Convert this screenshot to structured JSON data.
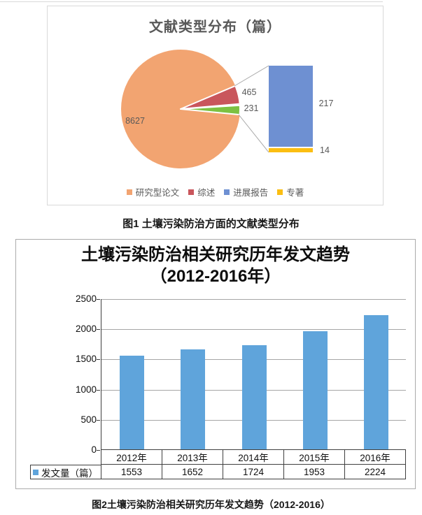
{
  "captions": {
    "fig1": "图1  土壤污染防治方面的文献类型分布",
    "fig2": "图2土壤污染防治相关研究历年发文趋势（2012-2016）"
  },
  "chart_data": [
    {
      "type": "pie",
      "subtype": "bar-of-pie",
      "title": "文献类型分布（篇）",
      "slices": [
        {
          "value": 8627,
          "color": "#F2A471"
        },
        {
          "value": 465,
          "color": "#C9565C"
        },
        {
          "value": 231,
          "color": "#7DC142"
        }
      ],
      "bar_segments": [
        {
          "value": 217,
          "color": "#6E90D2"
        },
        {
          "value": 14,
          "color": "#FBBE12"
        }
      ],
      "legend": [
        {
          "label": "研究型论文",
          "color": "#F2A471"
        },
        {
          "label": "综述",
          "color": "#C9565C"
        },
        {
          "label": "进展报告",
          "color": "#6E90D2"
        },
        {
          "label": "专著",
          "color": "#FBBE12"
        }
      ],
      "legend_position": "bottom",
      "title_color": "#595959",
      "label_color": "#595959"
    },
    {
      "type": "bar",
      "title": "土壤污染防治相关研究历年发文趋势（2012-2016年）",
      "title_lines": [
        "土壤污染防治相关研究历年发文趋势",
        "（2012-2016年）"
      ],
      "categories": [
        "2012年",
        "2013年",
        "2014年",
        "2015年",
        "2016年"
      ],
      "series": [
        {
          "name": "发文量（篇）",
          "values": [
            1553,
            1652,
            1724,
            1953,
            2224
          ],
          "color": "#5FA4DB"
        }
      ],
      "ylim": [
        0,
        2500
      ],
      "yticks": [
        "2500",
        "2000",
        "1500",
        "1000",
        "500",
        "0"
      ],
      "grid": true,
      "data_table": true,
      "legend_position": "table-row-header"
    }
  ]
}
